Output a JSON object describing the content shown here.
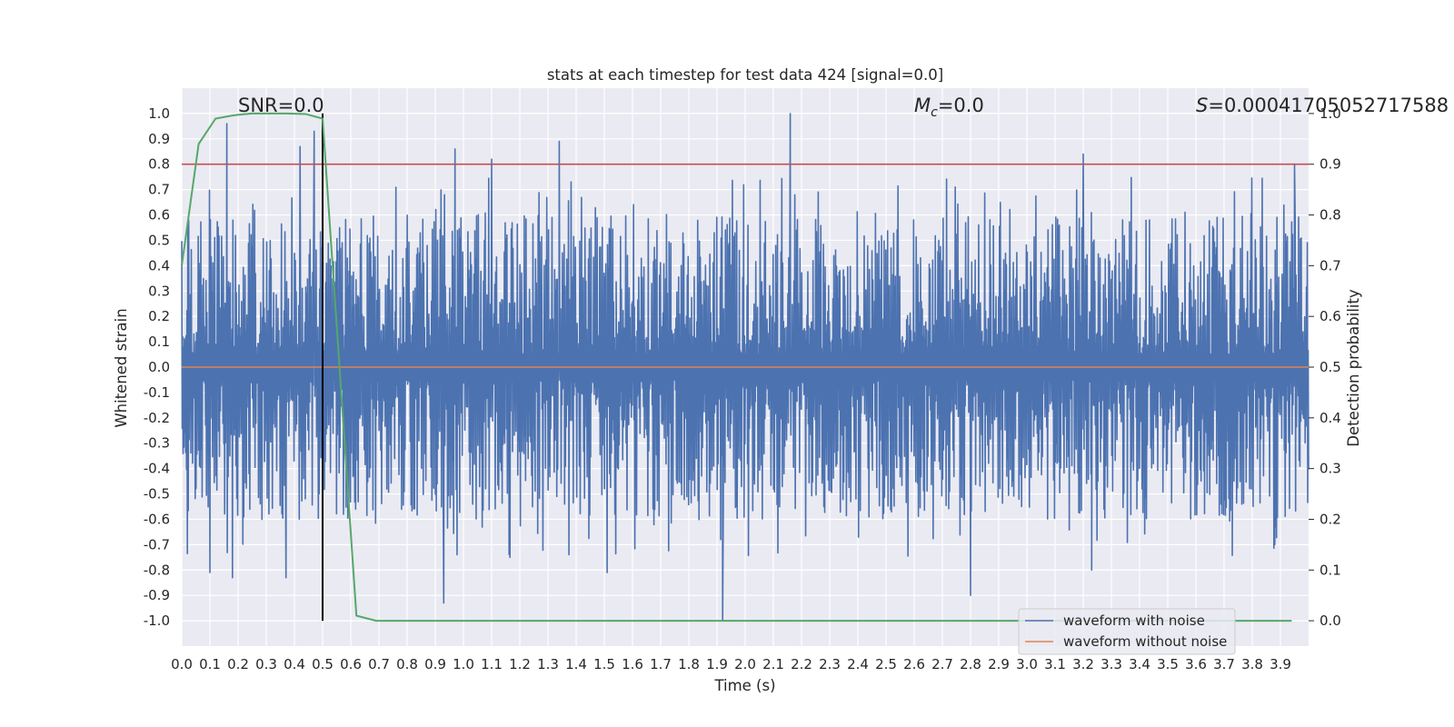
{
  "chart_data": {
    "type": "line",
    "title": "stats at each timestep for test data 424 [signal=0.0]",
    "xlabel": "Time (s)",
    "ylabel": "Whitened strain",
    "y2label": "Detection probability",
    "xlim": [
      0.0,
      4.0
    ],
    "ylim": [
      -1.1,
      1.1
    ],
    "y2lim": [
      -0.05,
      1.05
    ],
    "x_ticks": [
      "0.0",
      "0.1",
      "0.2",
      "0.3",
      "0.4",
      "0.5",
      "0.6",
      "0.7",
      "0.8",
      "0.9",
      "1.0",
      "1.1",
      "1.2",
      "1.3",
      "1.4",
      "1.5",
      "1.6",
      "1.7",
      "1.8",
      "1.9",
      "2.0",
      "2.1",
      "2.2",
      "2.3",
      "2.4",
      "2.5",
      "2.6",
      "2.7",
      "2.8",
      "2.9",
      "3.0",
      "3.1",
      "3.2",
      "3.3",
      "3.4",
      "3.5",
      "3.6",
      "3.7",
      "3.8",
      "3.9"
    ],
    "y_ticks": [
      "1.0",
      "0.9",
      "0.8",
      "0.7",
      "0.6",
      "0.5",
      "0.4",
      "0.3",
      "0.2",
      "0.1",
      "0.0",
      "-0.1",
      "-0.2",
      "-0.3",
      "-0.4",
      "-0.5",
      "-0.6",
      "-0.7",
      "-0.8",
      "-0.9",
      "-1.0"
    ],
    "y2_ticks": [
      "1.0",
      "0.9",
      "0.8",
      "0.7",
      "0.6",
      "0.5",
      "0.4",
      "0.3",
      "0.2",
      "0.1",
      "0.0"
    ],
    "annotations": {
      "snr": "SNR=0.0",
      "mc": "=0.0",
      "mc_symbol": "M",
      "mc_sub": "c",
      "s": "=0.00041705052717588",
      "s_symbol": "S"
    },
    "legend": {
      "placement": "bottom-right",
      "entries": [
        {
          "label": "waveform with noise",
          "color": "#4c72b0"
        },
        {
          "label": "waveform without noise",
          "color": "#dd8452"
        }
      ]
    },
    "threshold": {
      "y2": 0.9,
      "color": "#c44e52"
    },
    "marker_line": {
      "x": 0.5,
      "color": "#000000"
    },
    "series": [
      {
        "name": "waveform with noise",
        "color": "#4c72b0",
        "kind": "noise",
        "description_range": [
          -1.0,
          1.0
        ],
        "peaks": [
          {
            "x": 0.16,
            "y": 0.96
          },
          {
            "x": 0.42,
            "y": 0.87
          },
          {
            "x": 0.47,
            "y": 0.93
          },
          {
            "x": 0.97,
            "y": 0.86
          },
          {
            "x": 1.1,
            "y": 0.82
          },
          {
            "x": 1.34,
            "y": 0.89
          },
          {
            "x": 2.16,
            "y": 1.0
          },
          {
            "x": 3.2,
            "y": 0.84
          },
          {
            "x": 3.95,
            "y": 0.8
          },
          {
            "x": 0.1,
            "y": -0.81
          },
          {
            "x": 0.18,
            "y": -0.83
          },
          {
            "x": 0.37,
            "y": -0.83
          },
          {
            "x": 0.93,
            "y": -0.93
          },
          {
            "x": 1.92,
            "y": -1.0
          },
          {
            "x": 2.8,
            "y": -0.9
          },
          {
            "x": 3.23,
            "y": -0.8
          },
          {
            "x": 1.51,
            "y": -0.81
          }
        ]
      },
      {
        "name": "waveform without noise",
        "color": "#dd8452",
        "kind": "flat",
        "y": 0.0
      },
      {
        "name": "detection probability",
        "color": "#55a868",
        "axis": "y2",
        "x": [
          0.0,
          0.06,
          0.12,
          0.19,
          0.25,
          0.31,
          0.37,
          0.44,
          0.5,
          0.56,
          0.62,
          0.69,
          0.75,
          1.0,
          2.0,
          3.0,
          3.94
        ],
        "y": [
          0.7,
          0.94,
          0.99,
          0.997,
          1.0,
          1.0,
          1.0,
          0.999,
          0.99,
          0.5,
          0.01,
          0.0,
          0.0,
          0.0,
          0.0,
          0.0,
          0.0
        ]
      }
    ]
  }
}
